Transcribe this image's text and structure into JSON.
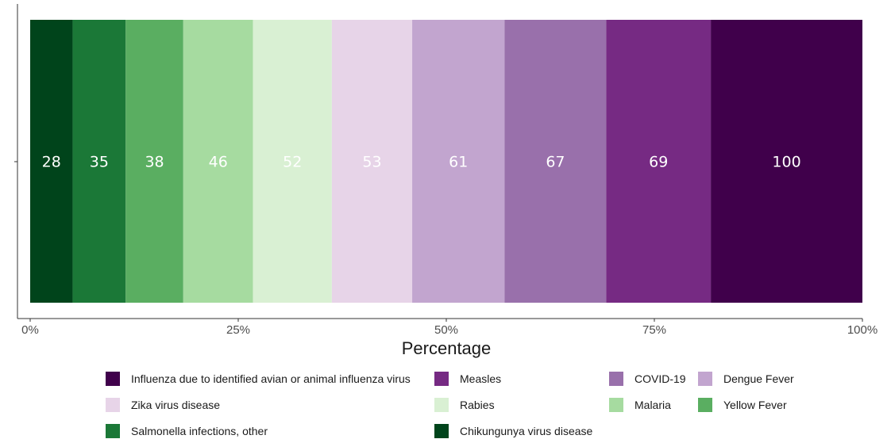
{
  "chart_data": {
    "type": "bar",
    "orientation": "horizontal-stacked-100",
    "xlabel": "Percentage",
    "ylabel": "",
    "xlim": [
      0,
      100
    ],
    "x_ticks": [
      "0%",
      "25%",
      "50%",
      "75%",
      "100%"
    ],
    "legend_position": "bottom",
    "grid": false,
    "series": [
      {
        "name": "Chikungunya virus disease",
        "value": 28,
        "color": "#00441b"
      },
      {
        "name": "Salmonella infections, other",
        "value": 35,
        "color": "#1b7837"
      },
      {
        "name": "Yellow Fever",
        "value": 38,
        "color": "#5aae61"
      },
      {
        "name": "Malaria",
        "value": 46,
        "color": "#a6dba0"
      },
      {
        "name": "Rabies",
        "value": 52,
        "color": "#d9f0d3"
      },
      {
        "name": "Zika virus disease",
        "value": 53,
        "color": "#e7d4e8"
      },
      {
        "name": "Dengue Fever",
        "value": 61,
        "color": "#c2a5cf"
      },
      {
        "name": "COVID-19",
        "value": 67,
        "color": "#9970ab"
      },
      {
        "name": "Measles",
        "value": 69,
        "color": "#762a83"
      },
      {
        "name": "Influenza due to identified avian or animal  influenza virus",
        "value": 100,
        "color": "#40004b"
      }
    ],
    "legend_order": [
      "Influenza due to identified avian or animal  influenza virus",
      "Measles",
      "COVID-19",
      "Dengue Fever",
      "Zika virus disease",
      "Rabies",
      "Malaria",
      "Yellow Fever",
      "Salmonella infections, other",
      "Chikungunya virus disease"
    ],
    "label_color": "#ffffff"
  }
}
